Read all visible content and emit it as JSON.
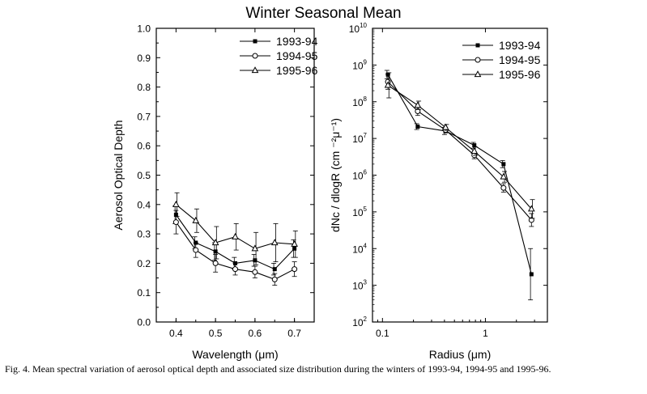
{
  "figure": {
    "title": "Winter Seasonal Mean",
    "caption": "Fig. 4. Mean spectral variation of aerosol optical depth and associated size distribution during the winters of 1993-94, 1994-95 and 1995-96."
  },
  "chart_data": [
    {
      "type": "line",
      "title": "",
      "xlabel": "Wavelength (μm)",
      "ylabel": "Aerosol Optical Depth",
      "xlim": [
        0.35,
        0.75
      ],
      "ylim": [
        0.0,
        1.0
      ],
      "x_ticks": [
        0.4,
        0.5,
        0.6,
        0.7
      ],
      "x_tick_labels": [
        "0.4",
        "0.5",
        "0.6",
        "0.7"
      ],
      "y_ticks": [
        0.0,
        0.1,
        0.2,
        0.3,
        0.4,
        0.5,
        0.6,
        0.7,
        0.8,
        0.9,
        1.0
      ],
      "y_tick_labels": [
        "0.0",
        "0.1",
        "0.2",
        "0.3",
        "0.4",
        "0.5",
        "0.6",
        "0.7",
        "0.8",
        "0.9",
        "1.0"
      ],
      "legend_position": "top-right",
      "x": [
        0.4,
        0.45,
        0.5,
        0.55,
        0.6,
        0.65,
        0.7
      ],
      "series": [
        {
          "name": "1993-94",
          "marker": "filled-square",
          "values": [
            0.365,
            0.27,
            0.24,
            0.2,
            0.21,
            0.18,
            0.25
          ],
          "errors": [
            0.03,
            0.02,
            0.03,
            0.02,
            0.02,
            0.02,
            0.03
          ]
        },
        {
          "name": "1994-95",
          "marker": "open-circle",
          "values": [
            0.34,
            0.245,
            0.2,
            0.18,
            0.17,
            0.145,
            0.18
          ],
          "errors": [
            0.04,
            0.025,
            0.03,
            0.02,
            0.02,
            0.02,
            0.025
          ]
        },
        {
          "name": "1995-96",
          "marker": "open-triangle",
          "values": [
            0.4,
            0.345,
            0.27,
            0.29,
            0.25,
            0.27,
            0.265
          ],
          "errors": [
            0.04,
            0.04,
            0.055,
            0.045,
            0.055,
            0.065,
            0.045
          ]
        }
      ]
    },
    {
      "type": "line",
      "title": "",
      "xlabel": "Radius (μm)",
      "ylabel": "dNc / dlogR (cm ⁻²μ⁻¹)",
      "xscale": "log",
      "yscale": "log",
      "xlim": [
        0.08,
        4.0
      ],
      "ylim": [
        100,
        10000000000
      ],
      "x_ticks": [
        0.1,
        1
      ],
      "x_tick_labels": [
        "0.1",
        "1"
      ],
      "y_tick_exponents": [
        2,
        3,
        4,
        5,
        6,
        7,
        8,
        9,
        10
      ],
      "y_tick_base": "10",
      "legend_position": "top-right",
      "x": [
        0.113,
        0.22,
        0.41,
        0.78,
        1.5,
        2.8
      ],
      "series": [
        {
          "name": "1993-94",
          "marker": "filled-square",
          "values": [
            550000000,
            21000000,
            16000000,
            6500000,
            2000000,
            2000
          ],
          "error_factors": [
            1.3,
            1.2,
            1.25,
            1.2,
            1.25,
            5.0
          ]
        },
        {
          "name": "1994-95",
          "marker": "open-circle",
          "values": [
            350000000,
            55000000,
            17000000,
            3500000,
            450000,
            60000
          ],
          "error_factors": [
            1.6,
            1.3,
            1.2,
            1.25,
            1.3,
            1.5
          ]
        },
        {
          "name": "1995-96",
          "marker": "open-triangle",
          "values": [
            280000000,
            80000000,
            20000000,
            4500000,
            900000,
            120000
          ],
          "error_factors": [
            2.2,
            1.3,
            1.2,
            1.3,
            1.4,
            1.8
          ]
        }
      ]
    }
  ]
}
